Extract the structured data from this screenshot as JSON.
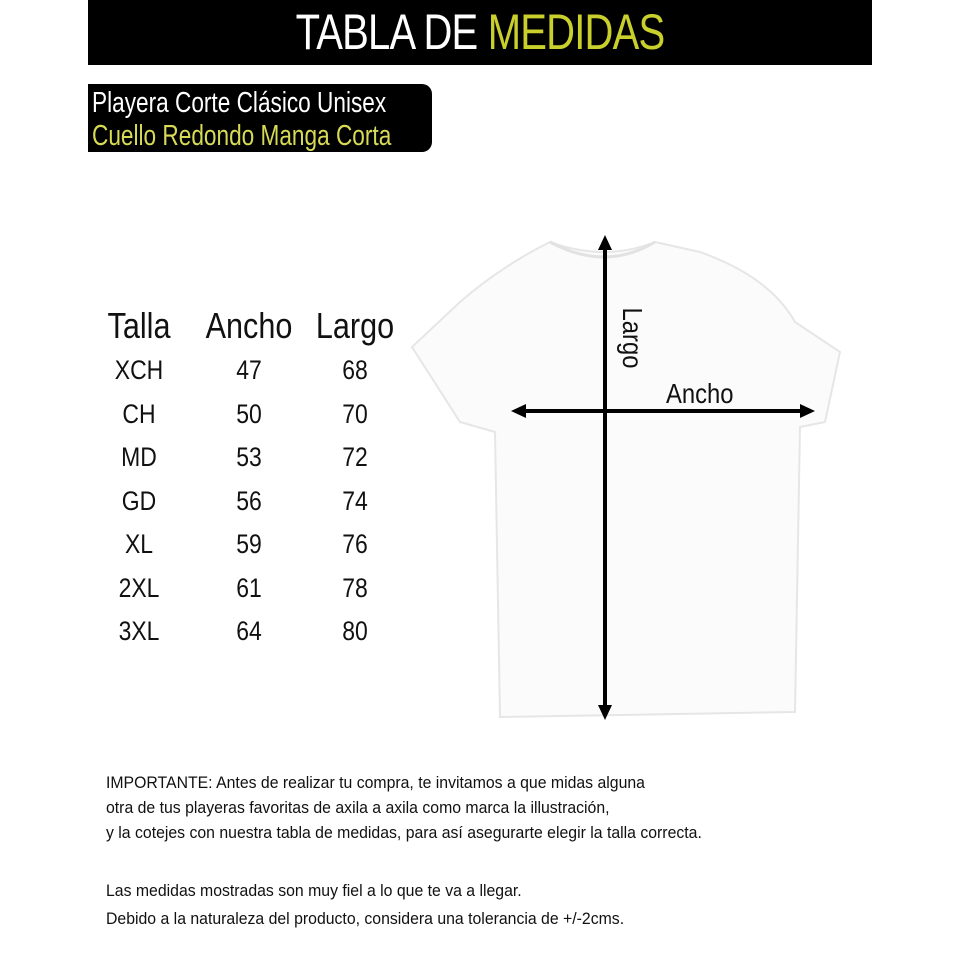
{
  "header": {
    "title_white": "TABLA DE ",
    "title_accent": "MEDIDAS",
    "accent_color": "#c9cf2b"
  },
  "subtitle": {
    "line1": "Playera Corte Clásico Unisex",
    "line2": "Cuello Redondo Manga Corta"
  },
  "table": {
    "headers": [
      "Talla",
      "Ancho",
      "Largo"
    ],
    "rows": [
      [
        "XCH",
        "47",
        "68"
      ],
      [
        "CH",
        "50",
        "70"
      ],
      [
        "MD",
        "53",
        "72"
      ],
      [
        "GD",
        "56",
        "74"
      ],
      [
        "XL",
        "59",
        "76"
      ],
      [
        "2XL",
        "61",
        "78"
      ],
      [
        "3XL",
        "64",
        "80"
      ]
    ]
  },
  "diagram": {
    "vertical_label": "Largo",
    "horizontal_label": "Ancho"
  },
  "notes": [
    "IMPORTANTE: Antes de realizar tu compra, te invitamos a que midas alguna",
    "otra de tus playeras favoritas de axila a axila como marca la illustración,",
    "y la cotejes con nuestra tabla de medidas, para así asegurarte elegir la talla correcta.",
    "Las medidas mostradas son muy fiel a lo que te va a llegar.",
    "Debido a la naturaleza del producto, considera una tolerancia de +/-2cms."
  ]
}
